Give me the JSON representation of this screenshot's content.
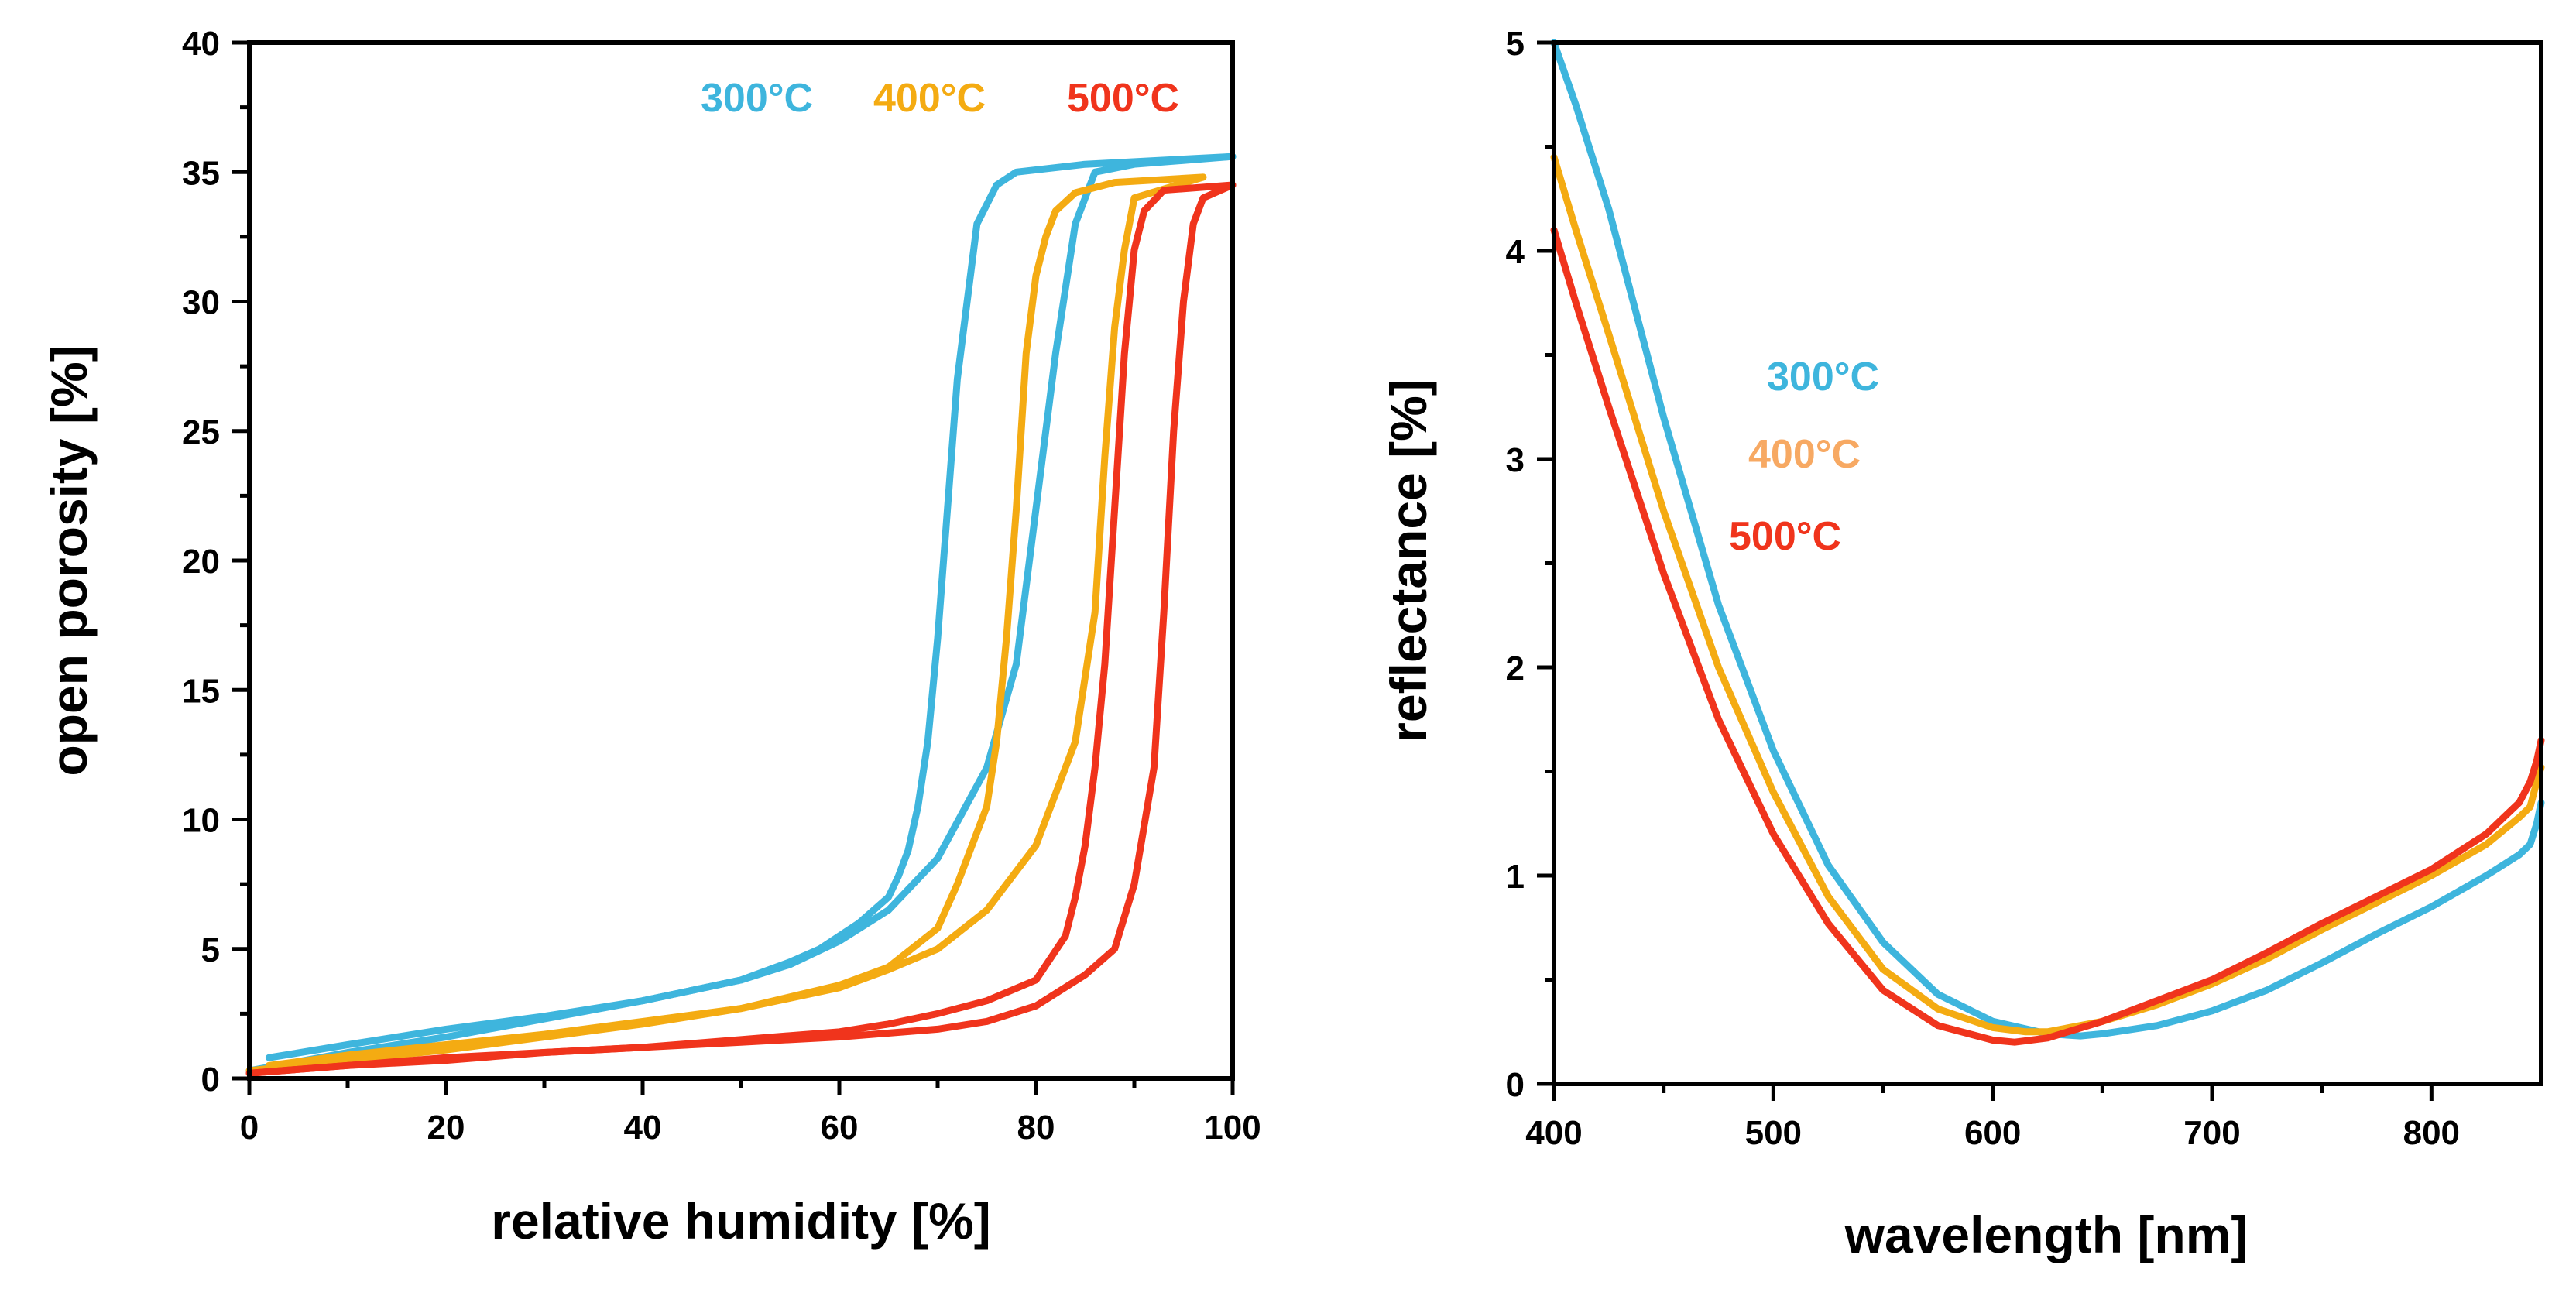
{
  "colors": {
    "c300": "#3eb5dd",
    "c400": "#f4ab12",
    "c500": "#f0341c",
    "c400_light": "#f7a963"
  },
  "chart_data": [
    {
      "type": "line",
      "xlabel": "relative humidity [%]",
      "ylabel": "open porosity [%]",
      "xlim": [
        0,
        100
      ],
      "ylim": [
        0,
        40
      ],
      "xticks": [
        0,
        20,
        40,
        60,
        80,
        100
      ],
      "xtick_labels": [
        "0",
        "20",
        "40",
        "60",
        "80",
        "100"
      ],
      "yticks": [
        0,
        5,
        10,
        15,
        20,
        25,
        30,
        35,
        40
      ],
      "ytick_labels": [
        "0",
        "5",
        "10",
        "15",
        "20",
        "25",
        "30",
        "35",
        "40"
      ],
      "legend": [
        "300°C",
        "400°C",
        "500°C"
      ],
      "legend_colors": [
        "c300",
        "c400",
        "c500"
      ],
      "series": [
        {
          "name": "300°C adsorption",
          "color": "c300",
          "x": [
            2,
            10,
            20,
            30,
            40,
            50,
            55,
            60,
            65,
            70,
            75,
            78,
            80,
            82,
            84,
            86,
            90,
            100
          ],
          "y": [
            0.8,
            1.3,
            1.9,
            2.4,
            3.0,
            3.8,
            4.4,
            5.3,
            6.5,
            8.5,
            12,
            16,
            22,
            28,
            33,
            35,
            35.3,
            35.6
          ]
        },
        {
          "name": "300°C desorption",
          "color": "c300",
          "x": [
            100,
            85,
            78,
            76,
            74,
            73,
            72,
            71,
            70,
            69,
            68,
            67,
            66,
            65,
            62,
            58,
            55,
            50,
            40,
            30,
            20,
            10,
            0
          ],
          "y": [
            35.6,
            35.3,
            35,
            34.5,
            33,
            30,
            27,
            22,
            17,
            13,
            10.5,
            8.8,
            7.8,
            7.0,
            6.0,
            5.0,
            4.5,
            3.8,
            3.0,
            2.3,
            1.6,
            1.0,
            0.3
          ]
        },
        {
          "name": "400°C adsorption",
          "color": "c400",
          "x": [
            2,
            10,
            20,
            30,
            40,
            50,
            60,
            65,
            70,
            75,
            80,
            84,
            86,
            87,
            88,
            89,
            90,
            97
          ],
          "y": [
            0.5,
            0.9,
            1.3,
            1.7,
            2.2,
            2.7,
            3.5,
            4.2,
            5.0,
            6.5,
            9.0,
            13,
            18,
            24,
            29,
            32,
            34,
            34.8
          ]
        },
        {
          "name": "400°C desorption",
          "color": "c400",
          "x": [
            97,
            88,
            84,
            82,
            81,
            80,
            79,
            78,
            77,
            76,
            75,
            72,
            70,
            65,
            60,
            50,
            40,
            30,
            20,
            10,
            0
          ],
          "y": [
            34.8,
            34.6,
            34.2,
            33.5,
            32.5,
            31,
            28,
            22,
            17,
            13,
            10.5,
            7.5,
            5.8,
            4.3,
            3.6,
            2.7,
            2.1,
            1.6,
            1.1,
            0.7,
            0.3
          ]
        },
        {
          "name": "500°C adsorption",
          "color": "c500",
          "x": [
            0,
            10,
            20,
            30,
            40,
            50,
            60,
            70,
            75,
            80,
            85,
            88,
            90,
            92,
            93,
            94,
            95,
            96,
            97,
            100
          ],
          "y": [
            0.2,
            0.5,
            0.8,
            1.0,
            1.2,
            1.4,
            1.6,
            1.9,
            2.2,
            2.8,
            4.0,
            5.0,
            7.5,
            12,
            18,
            25,
            30,
            33,
            34,
            34.5
          ]
        },
        {
          "name": "500°C desorption",
          "color": "c500",
          "x": [
            100,
            93,
            91,
            90,
            89,
            88,
            87,
            86,
            85,
            84,
            83,
            80,
            75,
            70,
            65,
            60,
            50,
            40,
            30,
            20,
            10,
            0
          ],
          "y": [
            34.5,
            34.3,
            33.5,
            32,
            28,
            22,
            16,
            12,
            9,
            7,
            5.5,
            3.8,
            3.0,
            2.5,
            2.1,
            1.8,
            1.5,
            1.2,
            1.0,
            0.7,
            0.5,
            0.2
          ]
        }
      ]
    },
    {
      "type": "line",
      "xlabel": "wavelength [nm]",
      "ylabel": "reflectance [%]",
      "xlim": [
        400,
        850
      ],
      "ylim": [
        0,
        5
      ],
      "xticks": [
        400,
        500,
        600,
        700,
        800
      ],
      "xtick_labels": [
        "400",
        "500",
        "600",
        "700",
        "800"
      ],
      "yticks": [
        0,
        1,
        2,
        3,
        4,
        5
      ],
      "ytick_labels": [
        "0",
        "1",
        "2",
        "3",
        "4",
        "5"
      ],
      "legend": [
        "300°C",
        "400°C",
        "500°C"
      ],
      "legend_colors": [
        "c300",
        "c400_light",
        "c500"
      ],
      "series": [
        {
          "name": "300°C",
          "color": "c300",
          "x": [
            400,
            410,
            425,
            450,
            475,
            500,
            525,
            550,
            575,
            600,
            625,
            640,
            650,
            675,
            700,
            725,
            750,
            775,
            800,
            825,
            840,
            845,
            848,
            850
          ],
          "y": [
            5.0,
            4.7,
            4.2,
            3.2,
            2.3,
            1.6,
            1.05,
            0.68,
            0.43,
            0.3,
            0.24,
            0.23,
            0.24,
            0.28,
            0.35,
            0.45,
            0.58,
            0.72,
            0.85,
            1.0,
            1.1,
            1.15,
            1.25,
            1.35
          ]
        },
        {
          "name": "400°C",
          "color": "c400",
          "x": [
            400,
            410,
            425,
            450,
            475,
            500,
            525,
            550,
            575,
            600,
            615,
            625,
            650,
            675,
            700,
            725,
            750,
            775,
            800,
            825,
            840,
            845,
            848,
            850
          ],
          "y": [
            4.45,
            4.1,
            3.6,
            2.75,
            2.0,
            1.4,
            0.9,
            0.55,
            0.36,
            0.27,
            0.25,
            0.25,
            0.3,
            0.38,
            0.48,
            0.6,
            0.74,
            0.87,
            1.0,
            1.15,
            1.28,
            1.33,
            1.45,
            1.52
          ]
        },
        {
          "name": "500°C",
          "color": "c500",
          "x": [
            400,
            410,
            425,
            450,
            475,
            500,
            525,
            550,
            575,
            600,
            610,
            625,
            650,
            675,
            700,
            725,
            750,
            775,
            800,
            825,
            835,
            840,
            845,
            848,
            850
          ],
          "y": [
            4.1,
            3.75,
            3.25,
            2.45,
            1.75,
            1.2,
            0.77,
            0.45,
            0.28,
            0.21,
            0.2,
            0.22,
            0.3,
            0.4,
            0.5,
            0.63,
            0.77,
            0.9,
            1.03,
            1.2,
            1.3,
            1.35,
            1.45,
            1.55,
            1.65
          ]
        }
      ]
    }
  ]
}
